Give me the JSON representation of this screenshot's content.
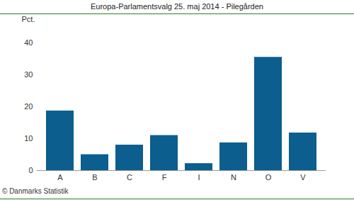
{
  "chart_data": {
    "type": "bar",
    "title": "Europa-Parlamentsvalg 25. maj 2014 - Pilegården",
    "y_label": "Pct.",
    "caption": "© Danmarks Statistik",
    "categories": [
      "A",
      "B",
      "C",
      "F",
      "I",
      "N",
      "O",
      "V"
    ],
    "values": [
      18.7,
      5.0,
      8.0,
      11.0,
      2.2,
      8.7,
      35.5,
      11.8
    ],
    "color": "#0b5e8e",
    "ylim": [
      0,
      40
    ],
    "yticks": [
      0,
      10,
      20,
      30,
      40
    ],
    "grid": false
  }
}
